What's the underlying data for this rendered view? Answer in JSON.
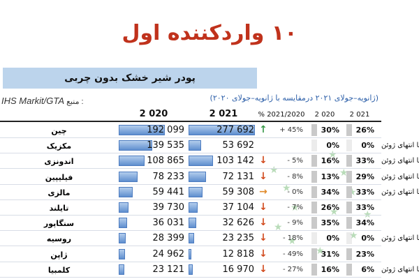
{
  "title": "۱۰ واردکننده اول",
  "subtitle": "پودر شیر خشک بدون چربی",
  "period": "(ژانویه–جولای ۲۰۲۱ درمقایسه با ژانویه–جولای ۲۰۲۰)",
  "source_label": "منبع :",
  "source_name": "IHS Markit/GTA",
  "headers": {
    "vol_2020": "2 020",
    "vol_2021": "2 021",
    "pct_change": "% 2021/2020",
    "share_2020": "2 020",
    "share_2021": "2 021"
  },
  "colors": {
    "title": "#c0321c",
    "subtitle_band": "#bcd4ec",
    "bar": "#5f8fcf",
    "arrow_up": "#3a9a4a",
    "arrow_down": "#d24b1e",
    "arrow_flat": "#e08a2a"
  },
  "chart_data": {
    "type": "table",
    "title": "پودر شیر خشک بدون چربی",
    "columns": [
      "2 020",
      "2 021",
      "% 2021/2020",
      "2 020",
      "2 021"
    ],
    "ylim": [
      0,
      280000
    ],
    "rows": [
      {
        "country": "چین",
        "vol_2020": 192099,
        "vol_2021": 277692,
        "vol_2020_text": "192 099",
        "vol_2021_text": "277 692",
        "trend": "up",
        "trend_icon": "arrow-up-icon",
        "pct": "+ 45%",
        "share_2020": "30%",
        "share_2021": "26%",
        "share_2020_level": 0.3,
        "share_2021_level": 0.26,
        "note": ""
      },
      {
        "country": "مکزیک",
        "vol_2020": 139535,
        "vol_2021": 53692,
        "vol_2020_text": "139 535",
        "vol_2021_text": "53 692",
        "trend": "none",
        "trend_icon": "",
        "pct": "",
        "share_2020": "0%",
        "share_2021": "0%",
        "share_2020_level": 0.0,
        "share_2021_level": 0.0,
        "note": "تا انتهای ژوئن"
      },
      {
        "country": "اندونزی",
        "vol_2020": 108865,
        "vol_2021": 103142,
        "vol_2020_text": "108 865",
        "vol_2021_text": "103 142",
        "trend": "down",
        "trend_icon": "arrow-down-icon",
        "pct": "- 5%",
        "share_2020": "16%",
        "share_2021": "33%",
        "share_2020_level": 0.16,
        "share_2021_level": 0.33,
        "note": "تا انتهای ژوئن"
      },
      {
        "country": "فیلیپین",
        "vol_2020": 78233,
        "vol_2021": 72131,
        "vol_2020_text": "78 233",
        "vol_2021_text": "72 131",
        "trend": "down",
        "trend_icon": "arrow-down-icon",
        "pct": "- 8%",
        "share_2020": "13%",
        "share_2021": "29%",
        "share_2020_level": 0.13,
        "share_2021_level": 0.29,
        "note": "تا انتهای ژوئن"
      },
      {
        "country": "مالزی",
        "vol_2020": 59441,
        "vol_2021": 59308,
        "vol_2020_text": "59 441",
        "vol_2021_text": "59 308",
        "trend": "flat",
        "trend_icon": "arrow-right-icon",
        "pct": "- 0%",
        "share_2020": "34%",
        "share_2021": "33%",
        "share_2020_level": 0.34,
        "share_2021_level": 0.33,
        "note": "تا انتهای ژوئن"
      },
      {
        "country": "تایلند",
        "vol_2020": 39730,
        "vol_2021": 37104,
        "vol_2020_text": "39 730",
        "vol_2021_text": "37 104",
        "trend": "down",
        "trend_icon": "arrow-down-icon",
        "pct": "- 7%",
        "share_2020": "26%",
        "share_2021": "33%",
        "share_2020_level": 0.26,
        "share_2021_level": 0.33,
        "note": ""
      },
      {
        "country": "سنگاپور",
        "vol_2020": 36031,
        "vol_2021": 32626,
        "vol_2020_text": "36 031",
        "vol_2021_text": "32 626",
        "trend": "down",
        "trend_icon": "arrow-down-icon",
        "pct": "- 9%",
        "share_2020": "35%",
        "share_2021": "34%",
        "share_2020_level": 0.35,
        "share_2021_level": 0.34,
        "note": ""
      },
      {
        "country": "روسیه",
        "vol_2020": 28399,
        "vol_2021": 23235,
        "vol_2020_text": "28 399",
        "vol_2021_text": "23 235",
        "trend": "down",
        "trend_icon": "arrow-down-icon",
        "pct": "- 18%",
        "share_2020": "0%",
        "share_2021": "0%",
        "share_2020_level": 0.0,
        "share_2021_level": 0.0,
        "note": "تا انتهای ژوئن"
      },
      {
        "country": "ژاپن",
        "vol_2020": 24962,
        "vol_2021": 12818,
        "vol_2020_text": "24 962",
        "vol_2021_text": "12 818",
        "trend": "down",
        "trend_icon": "arrow-down-icon",
        "pct": "- 49%",
        "share_2020": "31%",
        "share_2021": "23%",
        "share_2020_level": 0.31,
        "share_2021_level": 0.23,
        "note": ""
      },
      {
        "country": "کلمبیا",
        "vol_2020": 23121,
        "vol_2021": 16970,
        "vol_2020_text": "23 121",
        "vol_2021_text": "16 970",
        "trend": "down",
        "trend_icon": "arrow-down-icon",
        "pct": "- 27%",
        "share_2020": "16%",
        "share_2021": "6%",
        "share_2020_level": 0.16,
        "share_2021_level": 0.06,
        "note": "تا انتهای ژوئن"
      }
    ]
  }
}
